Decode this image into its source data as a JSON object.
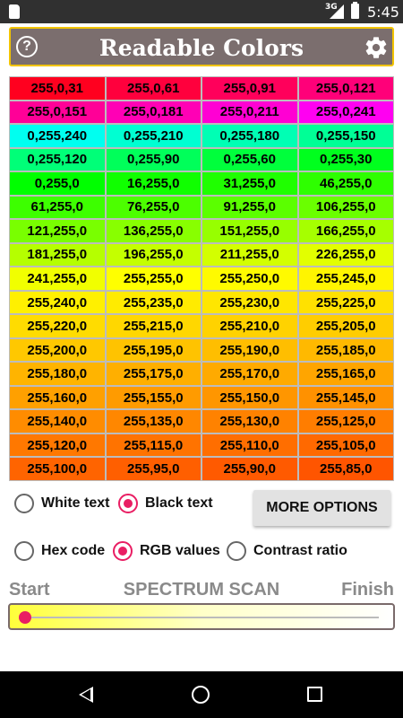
{
  "status_bar": {
    "network": "3G",
    "time": "5:45"
  },
  "app_bar": {
    "title": "Readable Colors",
    "help_label": "?"
  },
  "grid": {
    "cells": [
      {
        "label": "255,0,31",
        "bg": "#ff001f"
      },
      {
        "label": "255,0,61",
        "bg": "#ff003d"
      },
      {
        "label": "255,0,91",
        "bg": "#ff005b"
      },
      {
        "label": "255,0,121",
        "bg": "#ff0079"
      },
      {
        "label": "255,0,151",
        "bg": "#ff0097"
      },
      {
        "label": "255,0,181",
        "bg": "#ff00b5"
      },
      {
        "label": "255,0,211",
        "bg": "#ff00d3"
      },
      {
        "label": "255,0,241",
        "bg": "#ff00f1"
      },
      {
        "label": "0,255,240",
        "bg": "#00fff0"
      },
      {
        "label": "0,255,210",
        "bg": "#00ffd2"
      },
      {
        "label": "0,255,180",
        "bg": "#00ffb4"
      },
      {
        "label": "0,255,150",
        "bg": "#00ff96"
      },
      {
        "label": "0,255,120",
        "bg": "#00ff78"
      },
      {
        "label": "0,255,90",
        "bg": "#00ff5a"
      },
      {
        "label": "0,255,60",
        "bg": "#00ff3c"
      },
      {
        "label": "0,255,30",
        "bg": "#00ff1e"
      },
      {
        "label": "0,255,0",
        "bg": "#00ff00"
      },
      {
        "label": "16,255,0",
        "bg": "#10ff00"
      },
      {
        "label": "31,255,0",
        "bg": "#1fff00"
      },
      {
        "label": "46,255,0",
        "bg": "#2eff00"
      },
      {
        "label": "61,255,0",
        "bg": "#3dff00"
      },
      {
        "label": "76,255,0",
        "bg": "#4cff00"
      },
      {
        "label": "91,255,0",
        "bg": "#5bff00"
      },
      {
        "label": "106,255,0",
        "bg": "#6aff00"
      },
      {
        "label": "121,255,0",
        "bg": "#79ff00"
      },
      {
        "label": "136,255,0",
        "bg": "#88ff00"
      },
      {
        "label": "151,255,0",
        "bg": "#97ff00"
      },
      {
        "label": "166,255,0",
        "bg": "#a6ff00"
      },
      {
        "label": "181,255,0",
        "bg": "#b5ff00"
      },
      {
        "label": "196,255,0",
        "bg": "#c4ff00"
      },
      {
        "label": "211,255,0",
        "bg": "#d3ff00"
      },
      {
        "label": "226,255,0",
        "bg": "#e2ff00"
      },
      {
        "label": "241,255,0",
        "bg": "#f1ff00"
      },
      {
        "label": "255,255,0",
        "bg": "#ffff00"
      },
      {
        "label": "255,250,0",
        "bg": "#fffa00"
      },
      {
        "label": "255,245,0",
        "bg": "#fff500"
      },
      {
        "label": "255,240,0",
        "bg": "#fff000"
      },
      {
        "label": "255,235,0",
        "bg": "#ffeb00"
      },
      {
        "label": "255,230,0",
        "bg": "#ffe600"
      },
      {
        "label": "255,225,0",
        "bg": "#ffe100"
      },
      {
        "label": "255,220,0",
        "bg": "#ffdc00"
      },
      {
        "label": "255,215,0",
        "bg": "#ffd700"
      },
      {
        "label": "255,210,0",
        "bg": "#ffd200"
      },
      {
        "label": "255,205,0",
        "bg": "#ffcd00"
      },
      {
        "label": "255,200,0",
        "bg": "#ffc800"
      },
      {
        "label": "255,195,0",
        "bg": "#ffc300"
      },
      {
        "label": "255,190,0",
        "bg": "#ffbe00"
      },
      {
        "label": "255,185,0",
        "bg": "#ffb900"
      },
      {
        "label": "255,180,0",
        "bg": "#ffb400"
      },
      {
        "label": "255,175,0",
        "bg": "#ffaf00"
      },
      {
        "label": "255,170,0",
        "bg": "#ffaa00"
      },
      {
        "label": "255,165,0",
        "bg": "#ffa500"
      },
      {
        "label": "255,160,0",
        "bg": "#ffa000"
      },
      {
        "label": "255,155,0",
        "bg": "#ff9b00"
      },
      {
        "label": "255,150,0",
        "bg": "#ff9600"
      },
      {
        "label": "255,145,0",
        "bg": "#ff9100"
      },
      {
        "label": "255,140,0",
        "bg": "#ff8c00"
      },
      {
        "label": "255,135,0",
        "bg": "#ff8700"
      },
      {
        "label": "255,130,0",
        "bg": "#ff8200"
      },
      {
        "label": "255,125,0",
        "bg": "#ff7d00"
      },
      {
        "label": "255,120,0",
        "bg": "#ff7800"
      },
      {
        "label": "255,115,0",
        "bg": "#ff7300"
      },
      {
        "label": "255,110,0",
        "bg": "#ff6e00"
      },
      {
        "label": "255,105,0",
        "bg": "#ff6900"
      },
      {
        "label": "255,100,0",
        "bg": "#ff6400"
      },
      {
        "label": "255,95,0",
        "bg": "#ff5f00"
      },
      {
        "label": "255,90,0",
        "bg": "#ff5a00"
      },
      {
        "label": "255,85,0",
        "bg": "#ff5500"
      }
    ]
  },
  "text_color": {
    "white_label": "White text",
    "black_label": "Black text",
    "selected": "black"
  },
  "more_options_label": "MORE OPTIONS",
  "display_mode": {
    "hex_label": "Hex code",
    "rgb_label": "RGB values",
    "contrast_label": "Contrast ratio",
    "selected": "rgb"
  },
  "spectrum": {
    "start_label": "Start",
    "title": "SPECTRUM SCAN",
    "finish_label": "Finish",
    "position_fraction": 0.0
  },
  "colors": {
    "accent": "#e91e63",
    "app_bar": "#7b6e6e",
    "app_bar_border": "#f2c400"
  }
}
